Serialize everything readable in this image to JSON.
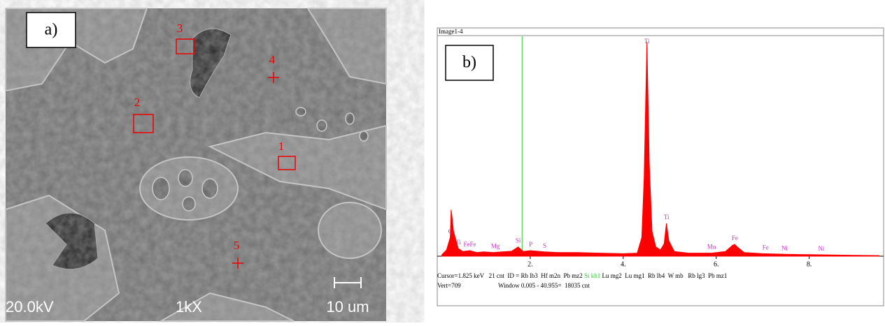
{
  "panel_a": {
    "label": "a)",
    "markers": [
      {
        "label": "1"
      },
      {
        "label": "2"
      },
      {
        "label": "3"
      },
      {
        "label": "4"
      },
      {
        "label": "5"
      }
    ],
    "voltage": "20.0kV",
    "magnification": "1kX",
    "scale_bar": "10 um"
  },
  "chart_data": {
    "type": "area",
    "title": "Image1-4",
    "panel_label": "b)",
    "color": "#ff0000",
    "x": [
      0.1,
      0.2,
      0.28,
      0.3,
      0.35,
      0.45,
      0.55,
      0.7,
      0.85,
      1.0,
      1.2,
      1.4,
      1.6,
      1.74,
      1.85,
      2.0,
      2.3,
      2.6,
      3.0,
      3.5,
      4.0,
      4.3,
      4.4,
      4.45,
      4.51,
      4.56,
      4.62,
      4.7,
      4.8,
      4.88,
      4.93,
      4.98,
      5.1,
      5.4,
      5.9,
      6.2,
      6.35,
      6.4,
      6.45,
      6.6,
      7.0,
      7.5,
      8.0,
      8.5,
      9.0,
      9.5
    ],
    "values": [
      5,
      20,
      60,
      150,
      80,
      25,
      15,
      18,
      12,
      14,
      12,
      14,
      16,
      30,
      15,
      18,
      14,
      12,
      12,
      10,
      8,
      10,
      60,
      250,
      690,
      300,
      80,
      30,
      20,
      40,
      106,
      50,
      15,
      10,
      10,
      15,
      35,
      38,
      30,
      12,
      8,
      6,
      5,
      4,
      3,
      2
    ],
    "xlim": [
      0,
      9.6
    ],
    "ylim": [
      0,
      709
    ],
    "xticks": [
      {
        "value": 2,
        "label": "2."
      },
      {
        "value": 4,
        "label": "4."
      },
      {
        "value": 6,
        "label": "6."
      },
      {
        "value": 8,
        "label": "8."
      }
    ],
    "cursor": 1.825,
    "cursor_color": "#33cc33",
    "label_color": "#cc33cc",
    "peak_labels": [
      {
        "text": "C",
        "x": 0.28
      },
      {
        "text": "Ti",
        "x": 0.45
      },
      {
        "text": "FeFe",
        "x": 0.7
      },
      {
        "text": "Mg",
        "x": 1.25
      },
      {
        "text": "Si",
        "x": 1.74
      },
      {
        "text": "P",
        "x": 2.01
      },
      {
        "text": "S",
        "x": 2.31
      },
      {
        "text": "Ti",
        "x": 4.51
      },
      {
        "text": "Ti",
        "x": 4.93
      },
      {
        "text": "Mn",
        "x": 5.9
      },
      {
        "text": "Fe",
        "x": 6.4
      },
      {
        "text": "Fe",
        "x": 7.06
      },
      {
        "text": "Ni",
        "x": 7.47
      },
      {
        "text": "Ni",
        "x": 8.26
      }
    ],
    "status": {
      "line1_a": "Cursor=1.825 keV   21 cnt  ID = Rb lb3  Hf m2n  Pb mz2 ",
      "line1_b": "Si kb1",
      "line1_c": " Lu mg2  Lu mg1  Rb lb4  W mb   Rb lg3  Pb mz1",
      "vert": "Vert=709",
      "window": "Window 0.005 - 40.955=  18035 cnt"
    }
  }
}
